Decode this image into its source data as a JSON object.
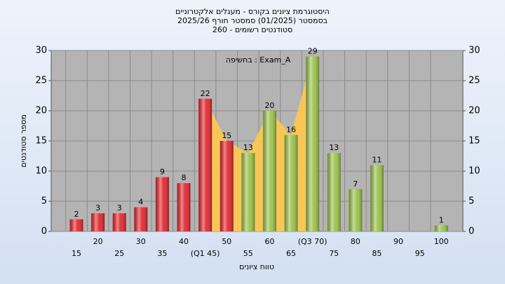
{
  "chart_data": {
    "type": "bar",
    "title": [
      "היסטוגרמת ציונים בקורס - מעגלים אלקטרוניים",
      "בסמסטר  (01/2025)  סמסטר חורף 2025/26",
      "סטודנטים רשומים - 260"
    ],
    "annotation": "בחשיפה : Exam_A",
    "x_label": "טווח ציונים",
    "y_label": "מספר סטודנטים",
    "categories": [
      "15",
      "20",
      "25",
      "30",
      "35",
      "40",
      "(Q1 45)",
      "50",
      "55",
      "60",
      "65",
      "(Q3 70)",
      "75",
      "80",
      "85",
      "90",
      "95",
      "100"
    ],
    "values": [
      2,
      3,
      3,
      4,
      9,
      8,
      22,
      15,
      13,
      20,
      16,
      29,
      13,
      7,
      11,
      0,
      0,
      1
    ],
    "colors": [
      "#e3262e",
      "#e3262e",
      "#e3262e",
      "#e3262e",
      "#e3262e",
      "#e3262e",
      "#e3262e",
      "#e3262e",
      "#9bc24a",
      "#9bc24a",
      "#9bc24a",
      "#9bc24a",
      "#9bc24a",
      "#9bc24a",
      "#9bc24a",
      "#9bc24a",
      "#9bc24a",
      "#9bc24a"
    ],
    "band_color": "#ffc94d",
    "ylim": [
      0,
      30
    ],
    "yticks": [
      0,
      5,
      10,
      15,
      20,
      25,
      30
    ],
    "y2lim": [
      0,
      30
    ],
    "y2ticks": [
      0,
      5,
      10,
      15,
      20,
      25,
      30
    ],
    "grid": true
  }
}
